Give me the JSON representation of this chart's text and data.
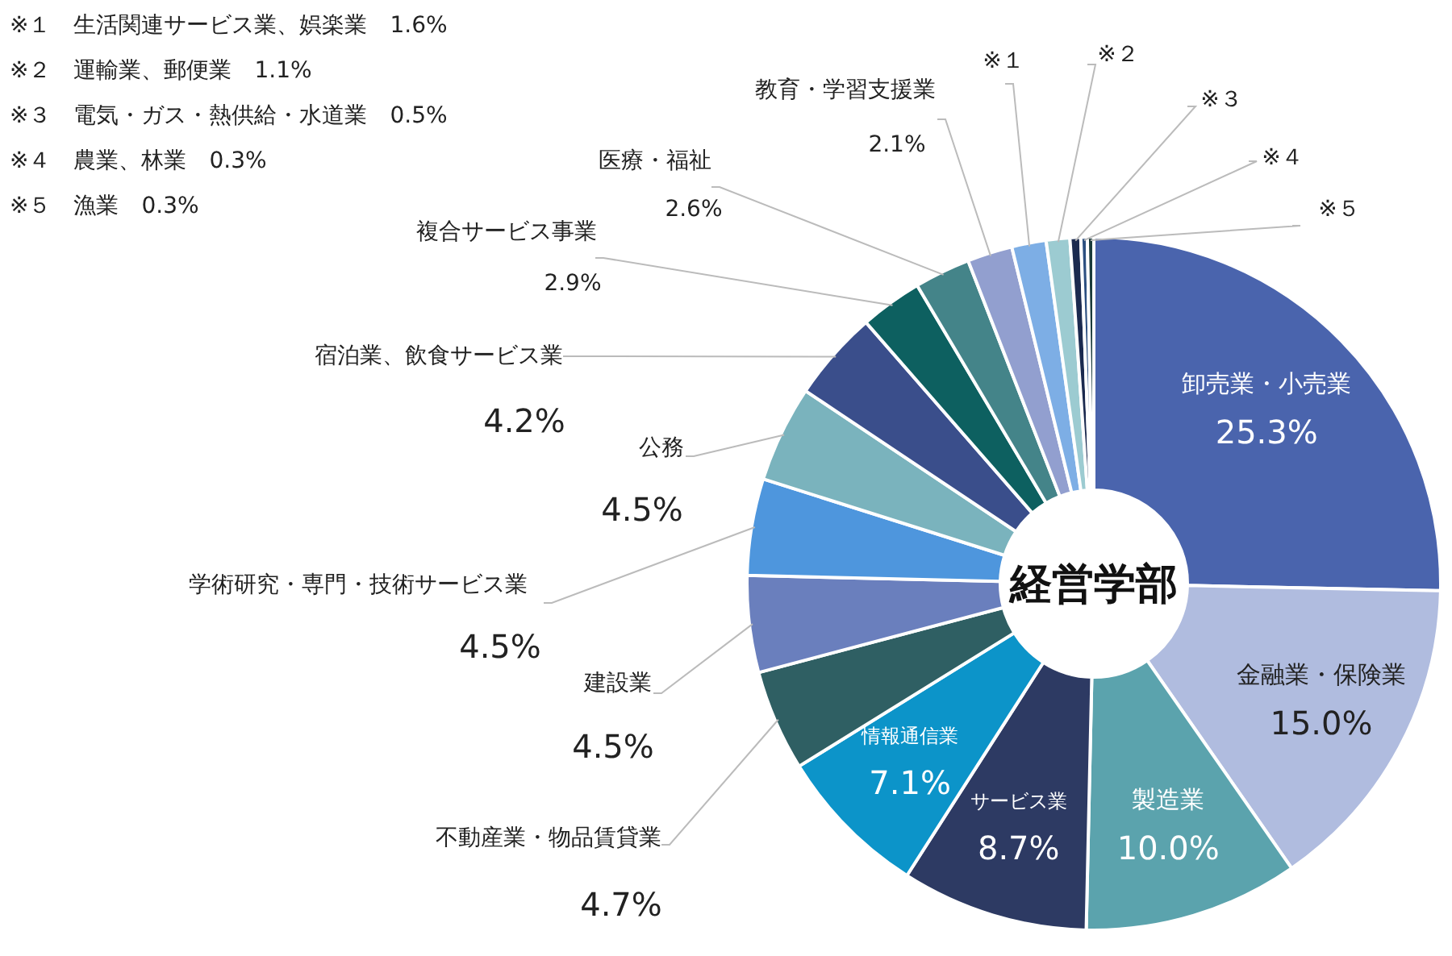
{
  "chart_data": {
    "type": "donut",
    "title": "経営学部",
    "categories": [
      "卸売業・小売業",
      "金融業・保険業",
      "製造業",
      "サービス業",
      "情報通信業",
      "不動産業・物品賃貸業",
      "建設業",
      "学術研究・専門・技術サービス業",
      "公務",
      "宿泊業、飲食サービス業",
      "複合サービス事業",
      "医療・福祉",
      "教育・学習支援業",
      "※１",
      "※２",
      "※３",
      "※４",
      "※５"
    ],
    "values": [
      25.3,
      15.0,
      10.0,
      8.7,
      7.1,
      4.7,
      4.5,
      4.5,
      4.5,
      4.2,
      2.9,
      2.6,
      2.1,
      1.6,
      1.1,
      0.5,
      0.3,
      0.3
    ],
    "value_labels": [
      "25.3%",
      "15.0%",
      "10.0%",
      "8.7%",
      "7.1%",
      "4.7%",
      "4.5%",
      "4.5%",
      "4.5%",
      "4.2%",
      "2.9%",
      "2.6%",
      "2.1%",
      null,
      null,
      null,
      null,
      null
    ],
    "colors": [
      "#4a64ad",
      "#b0bcdf",
      "#5ba3ad",
      "#2d3a63",
      "#0c94c9",
      "#2f5f63",
      "#6a7fbd",
      "#4e96dd",
      "#7ab3bd",
      "#3a4e8b",
      "#0d6060",
      "#448489",
      "#929fcf",
      "#7daee5",
      "#9ccbd1",
      "#1b2a4f",
      "#2c4f80",
      "#1a3a3a"
    ],
    "annotations": [
      "※１　生活関連サービス業、娯楽業　1.6%",
      "※２　運輸業、郵便業　1.1%",
      "※３　電気・ガス・熱供給・水道業　0.5%",
      "※４　農業、林業　0.3%",
      "※５　漁業　0.3%"
    ]
  }
}
